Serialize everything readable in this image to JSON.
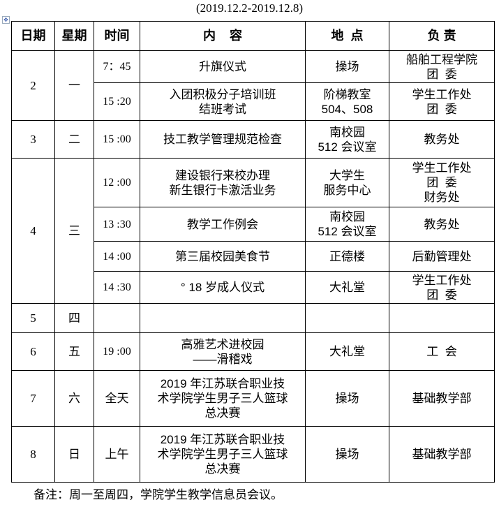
{
  "subtitle": "(2019.12.2-2019.12.8)",
  "headers": [
    "日期",
    "星期",
    "时间",
    "内    容",
    "地  点",
    "负 责"
  ],
  "days": [
    {
      "date": "2",
      "weekday": "一",
      "sessions": [
        {
          "time": "7：45",
          "content": [
            "升旗仪式"
          ],
          "place": [
            "操场"
          ],
          "owner": [
            "船舶工程学院",
            "团  委"
          ]
        },
        {
          "time": "15 :20",
          "content": [
            "入团积极分子培训班",
            "结班考试"
          ],
          "place": [
            "阶梯教室",
            "504、508"
          ],
          "owner": [
            "学生工作处",
            "团  委"
          ]
        }
      ]
    },
    {
      "date": "3",
      "weekday": "二",
      "sessions": [
        {
          "time": "15 :00",
          "content": [
            "技工教学管理规范检查"
          ],
          "place": [
            "南校园",
            "512 会议室"
          ],
          "owner": [
            "教务处"
          ]
        }
      ]
    },
    {
      "date": "4",
      "weekday": "三",
      "sessions": [
        {
          "time": "12 :00",
          "content": [
            "建设银行来校办理",
            "新生银行卡激活业务"
          ],
          "place": [
            "大学生",
            "服务中心"
          ],
          "owner": [
            "学生工作处",
            "团  委",
            "财务处"
          ]
        },
        {
          "time": "13 :30",
          "content": [
            "教学工作例会"
          ],
          "place": [
            "南校园",
            "512 会议室"
          ],
          "owner": [
            "教务处"
          ]
        },
        {
          "time": "14 :00",
          "content": [
            "第三届校园美食节"
          ],
          "place": [
            "正德楼"
          ],
          "owner": [
            "后勤管理处"
          ]
        },
        {
          "time": "14 :30",
          "content": [
            "° 18 岁成人仪式"
          ],
          "place": [
            "大礼堂"
          ],
          "owner": [
            "学生工作处",
            "团  委"
          ]
        }
      ]
    },
    {
      "date": "5",
      "weekday": "四",
      "sessions": [
        {
          "time": "",
          "content": [
            ""
          ],
          "place": [
            ""
          ],
          "owner": [
            ""
          ]
        }
      ]
    },
    {
      "date": "6",
      "weekday": "五",
      "sessions": [
        {
          "time": "19 :00",
          "content": [
            "高雅艺术进校园",
            "——滑稽戏"
          ],
          "place": [
            "大礼堂"
          ],
          "owner": [
            "工  会"
          ]
        }
      ]
    },
    {
      "date": "7",
      "weekday": "六",
      "sessions": [
        {
          "time": "全天",
          "content": [
            "2019 年江苏联合职业技",
            "术学院学生男子三人篮球",
            "总决赛"
          ],
          "place": [
            "操场"
          ],
          "owner": [
            "基础教学部"
          ]
        }
      ]
    },
    {
      "date": "8",
      "weekday": "日",
      "sessions": [
        {
          "time": "上午",
          "content": [
            "2019 年江苏联合职业技",
            "术学院学生男子三人篮球",
            "总决赛"
          ],
          "place": [
            "操场"
          ],
          "owner": [
            "基础教学部"
          ]
        }
      ]
    }
  ],
  "note": "备注：周一至周四，学院学生教学信息员会议。"
}
